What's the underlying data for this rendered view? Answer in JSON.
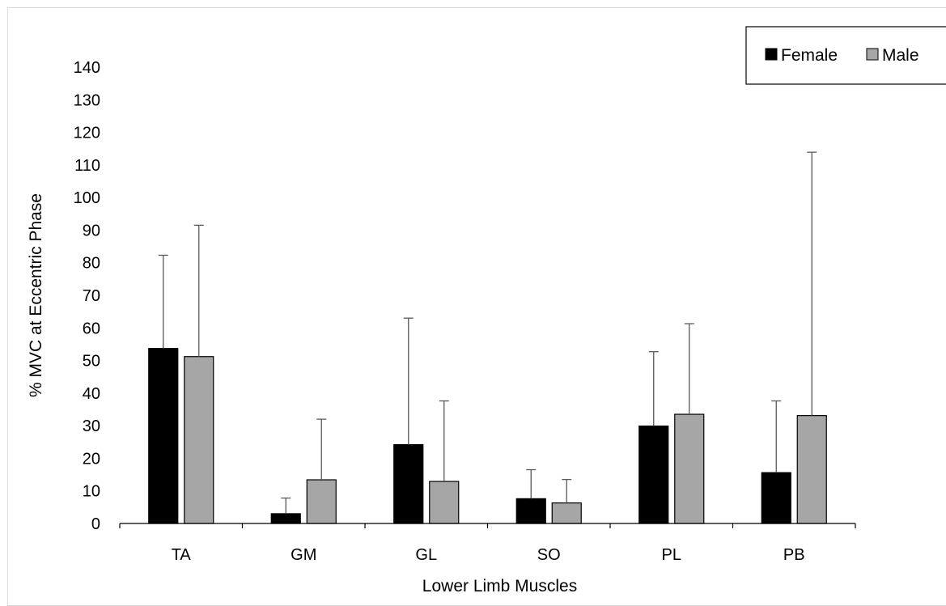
{
  "chart_data": {
    "type": "bar",
    "title": "",
    "xlabel": "Lower Limb Muscles",
    "ylabel": "% MVC at Eccentric Phase",
    "ylim": [
      0,
      140
    ],
    "yticks": [
      0,
      10,
      20,
      30,
      40,
      50,
      60,
      70,
      80,
      90,
      100,
      110,
      120,
      130,
      140
    ],
    "categories": [
      "TA",
      "GM",
      "GL",
      "SO",
      "PL",
      "PB"
    ],
    "grid": false,
    "legend_position": "top-right",
    "error_bars": "upper",
    "series": [
      {
        "name": "Female",
        "color": "#000000",
        "values": [
          53.7,
          3.0,
          24.2,
          7.6,
          29.9,
          15.6
        ],
        "errors": [
          28.6,
          4.8,
          38.8,
          8.9,
          22.8,
          22.0
        ]
      },
      {
        "name": "Male",
        "color": "#a6a6a6",
        "values": [
          51.2,
          13.4,
          12.9,
          6.3,
          33.5,
          33.1
        ],
        "errors": [
          40.3,
          18.6,
          24.7,
          7.2,
          27.8,
          80.8
        ]
      }
    ]
  }
}
